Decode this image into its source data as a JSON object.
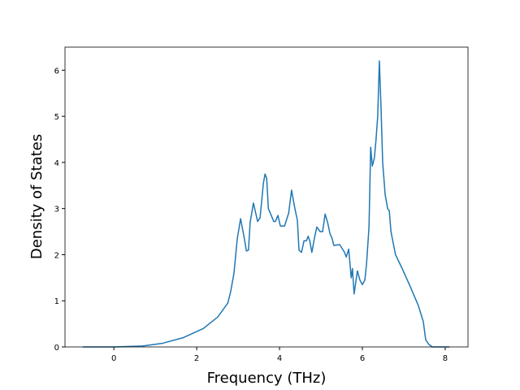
{
  "chart_data": {
    "type": "line",
    "xlabel": "Frequency (THz)",
    "ylabel": "Density of States",
    "xlim": [
      -1.18,
      8.55
    ],
    "ylim": [
      0,
      6.5
    ],
    "xticks": [
      0,
      2,
      4,
      6,
      8
    ],
    "yticks": [
      0,
      1,
      2,
      3,
      4,
      5,
      6
    ],
    "grid": false,
    "x": [
      -0.75,
      0,
      0.69,
      1.18,
      1.67,
      2.16,
      2.51,
      2.75,
      2.82,
      2.9,
      2.98,
      3.06,
      3.14,
      3.2,
      3.25,
      3.29,
      3.37,
      3.47,
      3.53,
      3.61,
      3.65,
      3.69,
      3.73,
      3.8,
      3.86,
      3.9,
      3.96,
      4.02,
      4.12,
      4.22,
      4.29,
      4.37,
      4.43,
      4.47,
      4.53,
      4.59,
      4.65,
      4.69,
      4.73,
      4.78,
      4.84,
      4.9,
      4.98,
      5.04,
      5.1,
      5.16,
      5.22,
      5.27,
      5.31,
      5.45,
      5.57,
      5.61,
      5.67,
      5.73,
      5.76,
      5.8,
      5.88,
      5.94,
      6.0,
      6.06,
      6.1,
      6.16,
      6.2,
      6.24,
      6.29,
      6.33,
      6.37,
      6.41,
      6.45,
      6.49,
      6.55,
      6.61,
      6.65,
      6.69,
      6.8,
      6.96,
      7.16,
      7.35,
      7.47,
      7.53,
      7.61,
      7.69,
      8.1
    ],
    "series": [
      {
        "name": "DOS",
        "color": "#1f77b4",
        "values": [
          0,
          0,
          0.02,
          0.08,
          0.2,
          0.4,
          0.65,
          0.95,
          1.2,
          1.6,
          2.35,
          2.78,
          2.4,
          2.08,
          2.1,
          2.7,
          3.12,
          2.72,
          2.8,
          3.55,
          3.75,
          3.65,
          3.0,
          2.85,
          2.72,
          2.72,
          2.85,
          2.62,
          2.62,
          2.9,
          3.4,
          3.0,
          2.75,
          2.1,
          2.05,
          2.3,
          2.3,
          2.4,
          2.3,
          2.05,
          2.35,
          2.6,
          2.5,
          2.5,
          2.88,
          2.7,
          2.45,
          2.35,
          2.2,
          2.22,
          2.05,
          1.95,
          2.12,
          1.5,
          1.7,
          1.15,
          1.65,
          1.45,
          1.35,
          1.45,
          1.8,
          2.6,
          4.33,
          3.92,
          4.1,
          4.5,
          5.0,
          6.2,
          5.2,
          4.0,
          3.3,
          3.0,
          2.95,
          2.5,
          2.0,
          1.7,
          1.3,
          0.9,
          0.55,
          0.15,
          0.05,
          0,
          0
        ]
      }
    ]
  }
}
